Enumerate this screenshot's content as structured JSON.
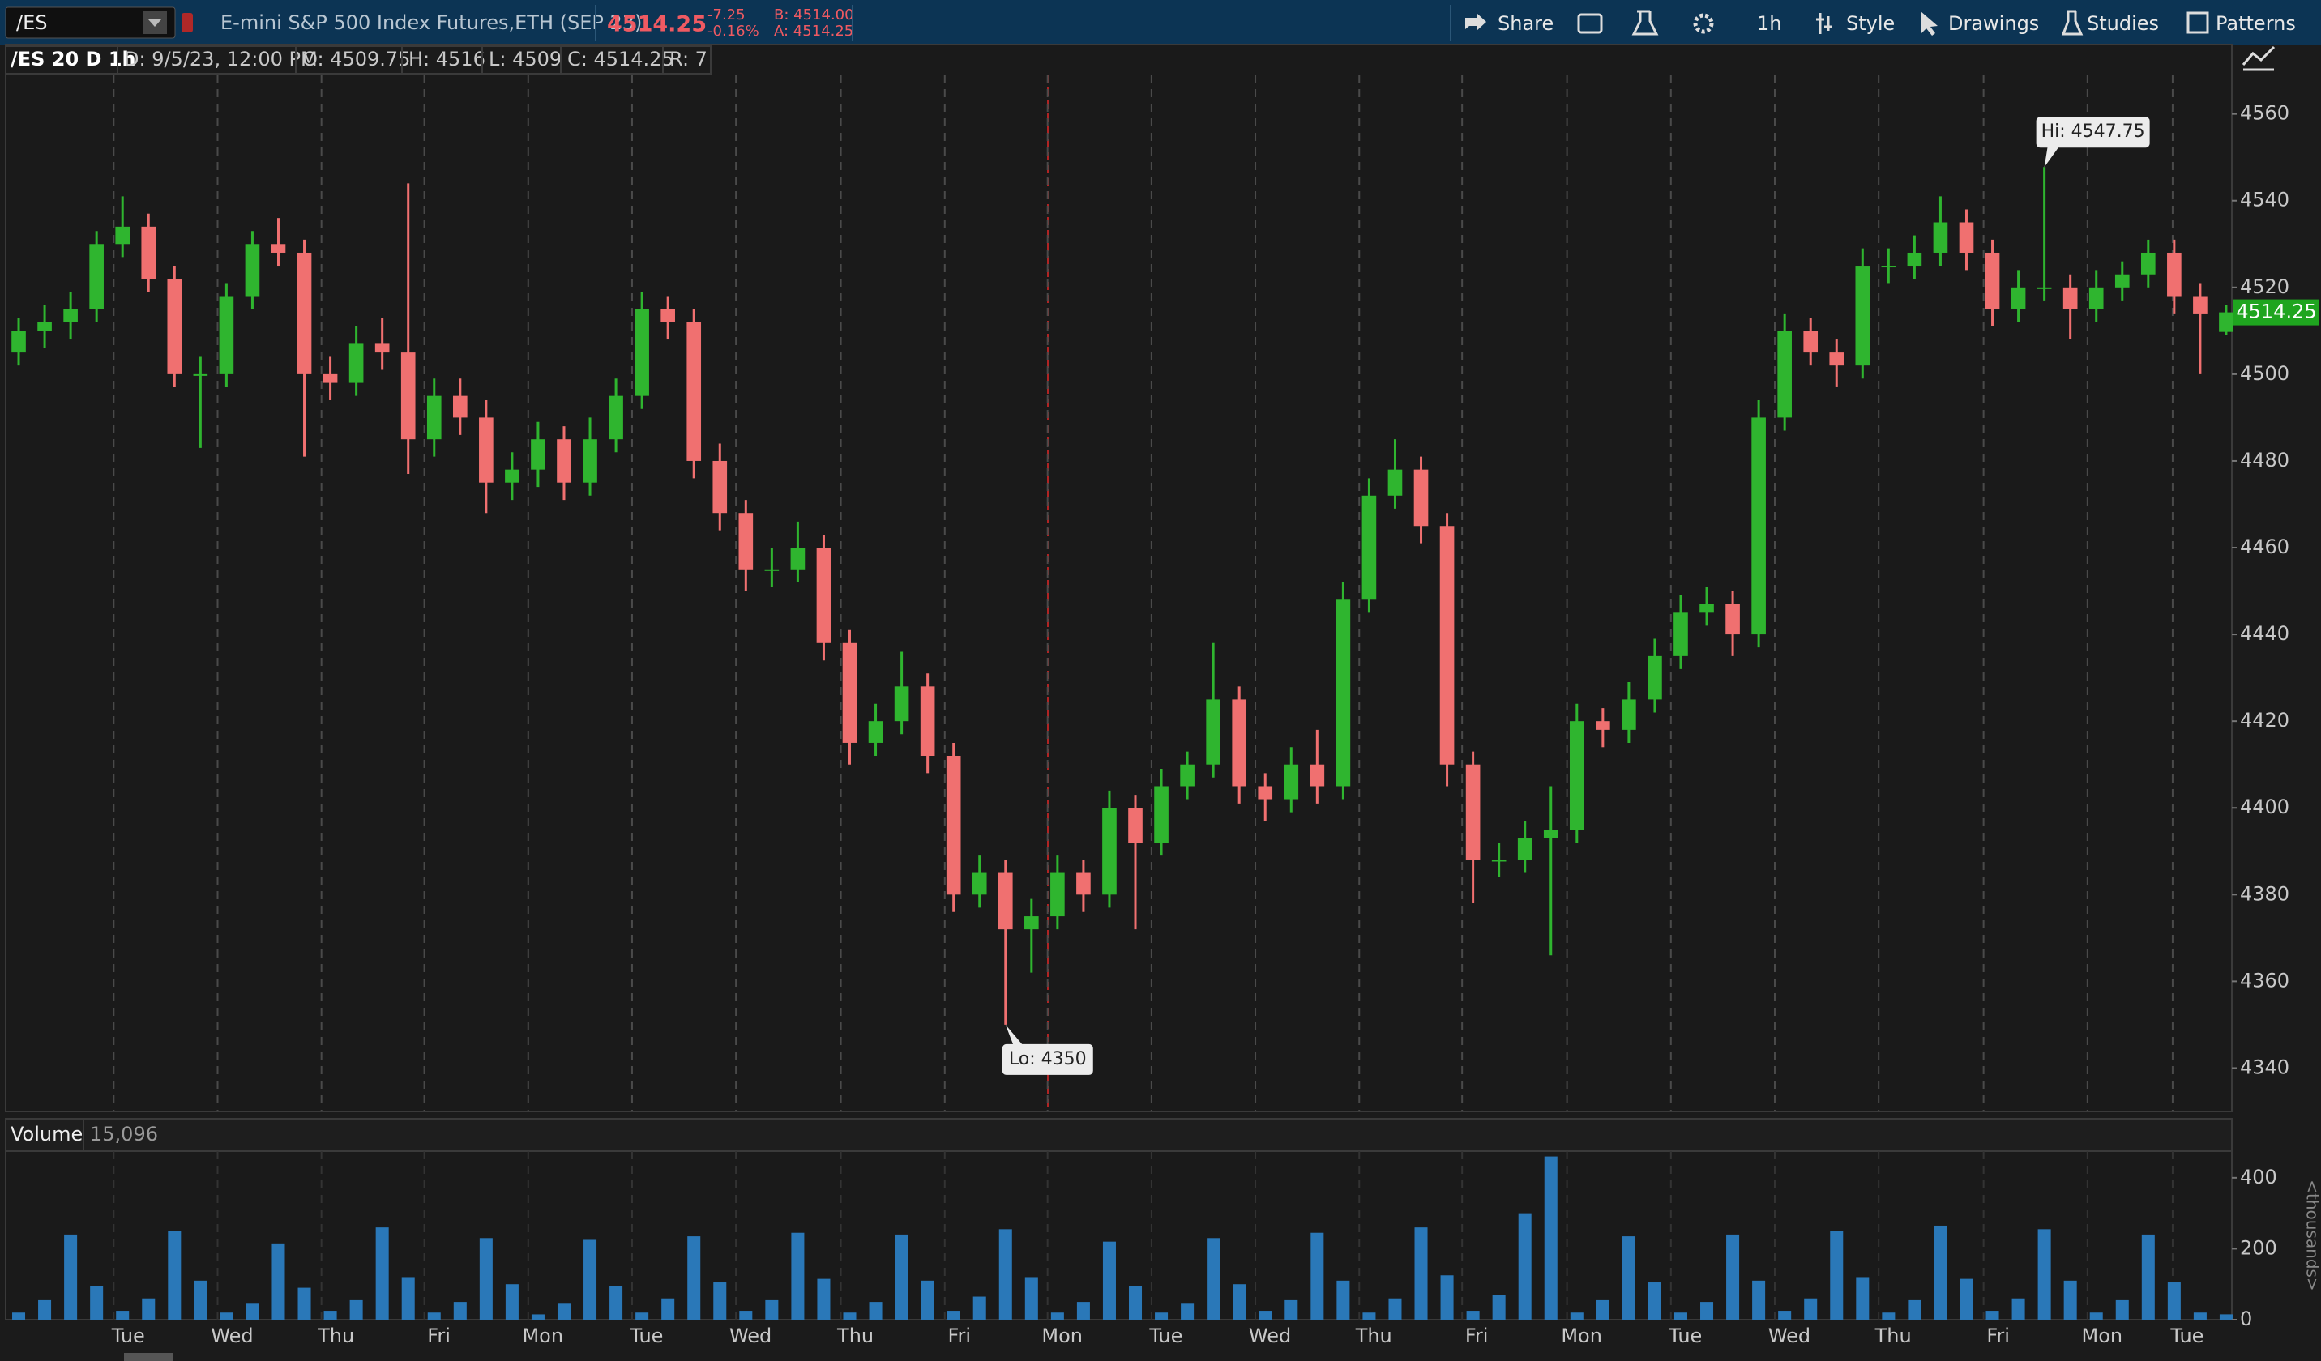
{
  "toolbar": {
    "symbol": "/ES",
    "description": "E-mini S&P 500 Index Futures,ETH (SEP 23)",
    "last": "4514.25",
    "change": "-7.25",
    "change_pct": "-0.16%",
    "bid": "B: 4514.00",
    "ask": "A: 4514.25",
    "buttons": [
      "Share",
      "1h",
      "Style",
      "Drawings",
      "Studies",
      "Patterns"
    ]
  },
  "info_bar": {
    "title": "/ES 20 D 1h",
    "items": [
      "D: 9/5/23, 12:00 PM",
      "O: 4509.75",
      "H: 4516",
      "L: 4509",
      "C: 4514.25",
      "R: 7"
    ]
  },
  "chart_data": [
    {
      "type": "candlestick",
      "up_color": "#2fb52f",
      "down_color": "#f07070",
      "grid": true,
      "annotations": [
        "Hi: 4547.75",
        "Lo: 4350"
      ],
      "last_label": "4514.25",
      "xlim": [
        0,
        21.43
      ],
      "ylim": [
        4330,
        4576
      ],
      "yticks": [
        4340,
        4360,
        4380,
        4400,
        4420,
        4440,
        4460,
        4480,
        4500,
        4520,
        4540,
        4560
      ],
      "xticks": [
        {
          "value": 1.04,
          "label": "Tue"
        },
        {
          "value": 2.04,
          "label": "Wed"
        },
        {
          "value": 3.04,
          "label": "Thu"
        },
        {
          "value": 4.03,
          "label": "Fri"
        },
        {
          "value": 5.03,
          "label": "Mon"
        },
        {
          "value": 6.03,
          "label": "Tue"
        },
        {
          "value": 7.03,
          "label": "Wed"
        },
        {
          "value": 8.04,
          "label": "Thu"
        },
        {
          "value": 9.04,
          "label": "Fri"
        },
        {
          "value": 10.03,
          "label": "Mon"
        },
        {
          "value": 11.03,
          "label": "Tue"
        },
        {
          "value": 12.03,
          "label": "Wed"
        },
        {
          "value": 13.03,
          "label": "Thu"
        },
        {
          "value": 14.02,
          "label": "Fri"
        },
        {
          "value": 15.03,
          "label": "Mon"
        },
        {
          "value": 16.03,
          "label": "Tue"
        },
        {
          "value": 17.03,
          "label": "Wed"
        },
        {
          "value": 18.03,
          "label": "Thu"
        },
        {
          "value": 19.04,
          "label": "Fri"
        },
        {
          "value": 20.04,
          "label": "Mon"
        },
        {
          "value": 20.86,
          "label": "Tue"
        }
      ],
      "x": [
        0.125,
        0.375,
        0.625,
        0.875,
        1.125,
        1.375,
        1.625,
        1.875,
        2.125,
        2.375,
        2.625,
        2.875,
        3.125,
        3.375,
        3.625,
        3.875,
        4.125,
        4.375,
        4.625,
        4.875,
        5.125,
        5.375,
        5.625,
        5.875,
        6.125,
        6.375,
        6.625,
        6.875,
        7.125,
        7.375,
        7.625,
        7.875,
        8.125,
        8.375,
        8.625,
        8.875,
        9.125,
        9.375,
        9.625,
        9.875,
        10.125,
        10.375,
        10.625,
        10.875,
        11.125,
        11.375,
        11.625,
        11.875,
        12.125,
        12.375,
        12.625,
        12.875,
        13.125,
        13.375,
        13.625,
        13.875,
        14.125,
        14.375,
        14.625,
        14.875,
        15.125,
        15.375,
        15.625,
        15.875,
        16.125,
        16.375,
        16.625,
        16.875,
        17.125,
        17.375,
        17.625,
        17.875,
        18.125,
        18.375,
        18.625,
        18.875,
        19.125,
        19.375,
        19.625,
        19.875,
        20.125,
        20.375,
        20.625,
        20.875,
        21.125,
        21.375
      ],
      "ohlc": [
        [
          4505,
          4513,
          4502,
          4510
        ],
        [
          4510,
          4516,
          4506,
          4512
        ],
        [
          4512,
          4519,
          4508,
          4515
        ],
        [
          4515,
          4533,
          4512,
          4530
        ],
        [
          4530,
          4541,
          4527,
          4534
        ],
        [
          4534,
          4537,
          4519,
          4522
        ],
        [
          4522,
          4525,
          4497,
          4500
        ],
        [
          4500,
          4504,
          4483,
          4500
        ],
        [
          4500,
          4521,
          4497,
          4518
        ],
        [
          4518,
          4533,
          4515,
          4530
        ],
        [
          4530,
          4536,
          4525,
          4528
        ],
        [
          4528,
          4531,
          4481,
          4500
        ],
        [
          4500,
          4504,
          4494,
          4498
        ],
        [
          4498,
          4511,
          4495,
          4507
        ],
        [
          4507,
          4513,
          4501,
          4505
        ],
        [
          4505,
          4544,
          4477,
          4485
        ],
        [
          4485,
          4499,
          4481,
          4495
        ],
        [
          4495,
          4499,
          4486,
          4490
        ],
        [
          4490,
          4494,
          4468,
          4475
        ],
        [
          4475,
          4482,
          4471,
          4478
        ],
        [
          4478,
          4489,
          4474,
          4485
        ],
        [
          4485,
          4488,
          4471,
          4475
        ],
        [
          4475,
          4490,
          4472,
          4485
        ],
        [
          4485,
          4499,
          4482,
          4495
        ],
        [
          4495,
          4519,
          4492,
          4515
        ],
        [
          4515,
          4518,
          4508,
          4512
        ],
        [
          4512,
          4515,
          4476,
          4480
        ],
        [
          4480,
          4484,
          4464,
          4468
        ],
        [
          4468,
          4471,
          4450,
          4455
        ],
        [
          4455,
          4460,
          4451,
          4455
        ],
        [
          4455,
          4466,
          4452,
          4460
        ],
        [
          4460,
          4463,
          4434,
          4438
        ],
        [
          4438,
          4441,
          4410,
          4415
        ],
        [
          4415,
          4424,
          4412,
          4420
        ],
        [
          4420,
          4436,
          4417,
          4428
        ],
        [
          4428,
          4431,
          4408,
          4412
        ],
        [
          4412,
          4415,
          4376,
          4380
        ],
        [
          4380,
          4389,
          4377,
          4385
        ],
        [
          4385,
          4388,
          4350,
          4372
        ],
        [
          4372,
          4379,
          4362,
          4375
        ],
        [
          4375,
          4389,
          4372,
          4385
        ],
        [
          4385,
          4388,
          4376,
          4380
        ],
        [
          4380,
          4404,
          4377,
          4400
        ],
        [
          4400,
          4403,
          4372,
          4392
        ],
        [
          4392,
          4409,
          4389,
          4405
        ],
        [
          4405,
          4413,
          4402,
          4410
        ],
        [
          4410,
          4438,
          4407,
          4425
        ],
        [
          4425,
          4428,
          4401,
          4405
        ],
        [
          4405,
          4408,
          4397,
          4402
        ],
        [
          4402,
          4414,
          4399,
          4410
        ],
        [
          4410,
          4418,
          4401,
          4405
        ],
        [
          4405,
          4452,
          4402,
          4448
        ],
        [
          4448,
          4476,
          4445,
          4472
        ],
        [
          4472,
          4485,
          4469,
          4478
        ],
        [
          4478,
          4481,
          4461,
          4465
        ],
        [
          4465,
          4468,
          4405,
          4410
        ],
        [
          4410,
          4413,
          4378,
          4388
        ],
        [
          4388,
          4392,
          4384,
          4388
        ],
        [
          4388,
          4397,
          4385,
          4393
        ],
        [
          4393,
          4405,
          4366,
          4395
        ],
        [
          4395,
          4424,
          4392,
          4420
        ],
        [
          4420,
          4423,
          4414,
          4418
        ],
        [
          4418,
          4429,
          4415,
          4425
        ],
        [
          4425,
          4439,
          4422,
          4435
        ],
        [
          4435,
          4449,
          4432,
          4445
        ],
        [
          4445,
          4451,
          4442,
          4447
        ],
        [
          4447,
          4450,
          4435,
          4440
        ],
        [
          4440,
          4494,
          4437,
          4490
        ],
        [
          4490,
          4514,
          4487,
          4510
        ],
        [
          4510,
          4513,
          4502,
          4505
        ],
        [
          4505,
          4508,
          4497,
          4502
        ],
        [
          4502,
          4529,
          4499,
          4525
        ],
        [
          4525,
          4529,
          4521,
          4525
        ],
        [
          4525,
          4532,
          4522,
          4528
        ],
        [
          4528,
          4541,
          4525,
          4535
        ],
        [
          4535,
          4538,
          4524,
          4528
        ],
        [
          4528,
          4531,
          4511,
          4515
        ],
        [
          4515,
          4524,
          4512,
          4520
        ],
        [
          4520,
          4547.75,
          4517,
          4520
        ],
        [
          4520,
          4523,
          4508,
          4515
        ],
        [
          4515,
          4524,
          4512,
          4520
        ],
        [
          4520,
          4526,
          4517,
          4523
        ],
        [
          4523,
          4531,
          4520,
          4528
        ],
        [
          4528,
          4531,
          4514,
          4518
        ],
        [
          4518,
          4521,
          4500,
          4514
        ],
        [
          4509.75,
          4516,
          4509,
          4514.25
        ]
      ]
    },
    {
      "type": "bar",
      "title": "Volume",
      "value_label": "15,096",
      "y_label": "<thousands>",
      "color": "#2a78b8",
      "xlim": [
        0,
        21.43
      ],
      "ylim": [
        0,
        475
      ],
      "yticks": [
        0,
        200,
        400
      ],
      "x": [
        0.125,
        0.375,
        0.625,
        0.875,
        1.125,
        1.375,
        1.625,
        1.875,
        2.125,
        2.375,
        2.625,
        2.875,
        3.125,
        3.375,
        3.625,
        3.875,
        4.125,
        4.375,
        4.625,
        4.875,
        5.125,
        5.375,
        5.625,
        5.875,
        6.125,
        6.375,
        6.625,
        6.875,
        7.125,
        7.375,
        7.625,
        7.875,
        8.125,
        8.375,
        8.625,
        8.875,
        9.125,
        9.375,
        9.625,
        9.875,
        10.125,
        10.375,
        10.625,
        10.875,
        11.125,
        11.375,
        11.625,
        11.875,
        12.125,
        12.375,
        12.625,
        12.875,
        13.125,
        13.375,
        13.625,
        13.875,
        14.125,
        14.375,
        14.625,
        14.875,
        15.125,
        15.375,
        15.625,
        15.875,
        16.125,
        16.375,
        16.625,
        16.875,
        17.125,
        17.375,
        17.625,
        17.875,
        18.125,
        18.375,
        18.625,
        18.875,
        19.125,
        19.375,
        19.625,
        19.875,
        20.125,
        20.375,
        20.625,
        20.875,
        21.125,
        21.375
      ],
      "values": [
        20,
        55,
        240,
        95,
        25,
        60,
        250,
        110,
        20,
        45,
        215,
        90,
        25,
        55,
        260,
        120,
        20,
        50,
        230,
        100,
        15,
        45,
        225,
        95,
        20,
        60,
        235,
        105,
        25,
        55,
        245,
        115,
        20,
        50,
        240,
        110,
        25,
        65,
        255,
        120,
        20,
        50,
        220,
        95,
        20,
        45,
        230,
        100,
        25,
        55,
        245,
        110,
        20,
        60,
        260,
        125,
        25,
        70,
        300,
        460,
        20,
        55,
        235,
        105,
        20,
        50,
        240,
        110,
        25,
        60,
        250,
        120,
        20,
        55,
        265,
        115,
        25,
        60,
        255,
        110,
        20,
        55,
        240,
        105,
        20,
        15.096
      ]
    }
  ]
}
